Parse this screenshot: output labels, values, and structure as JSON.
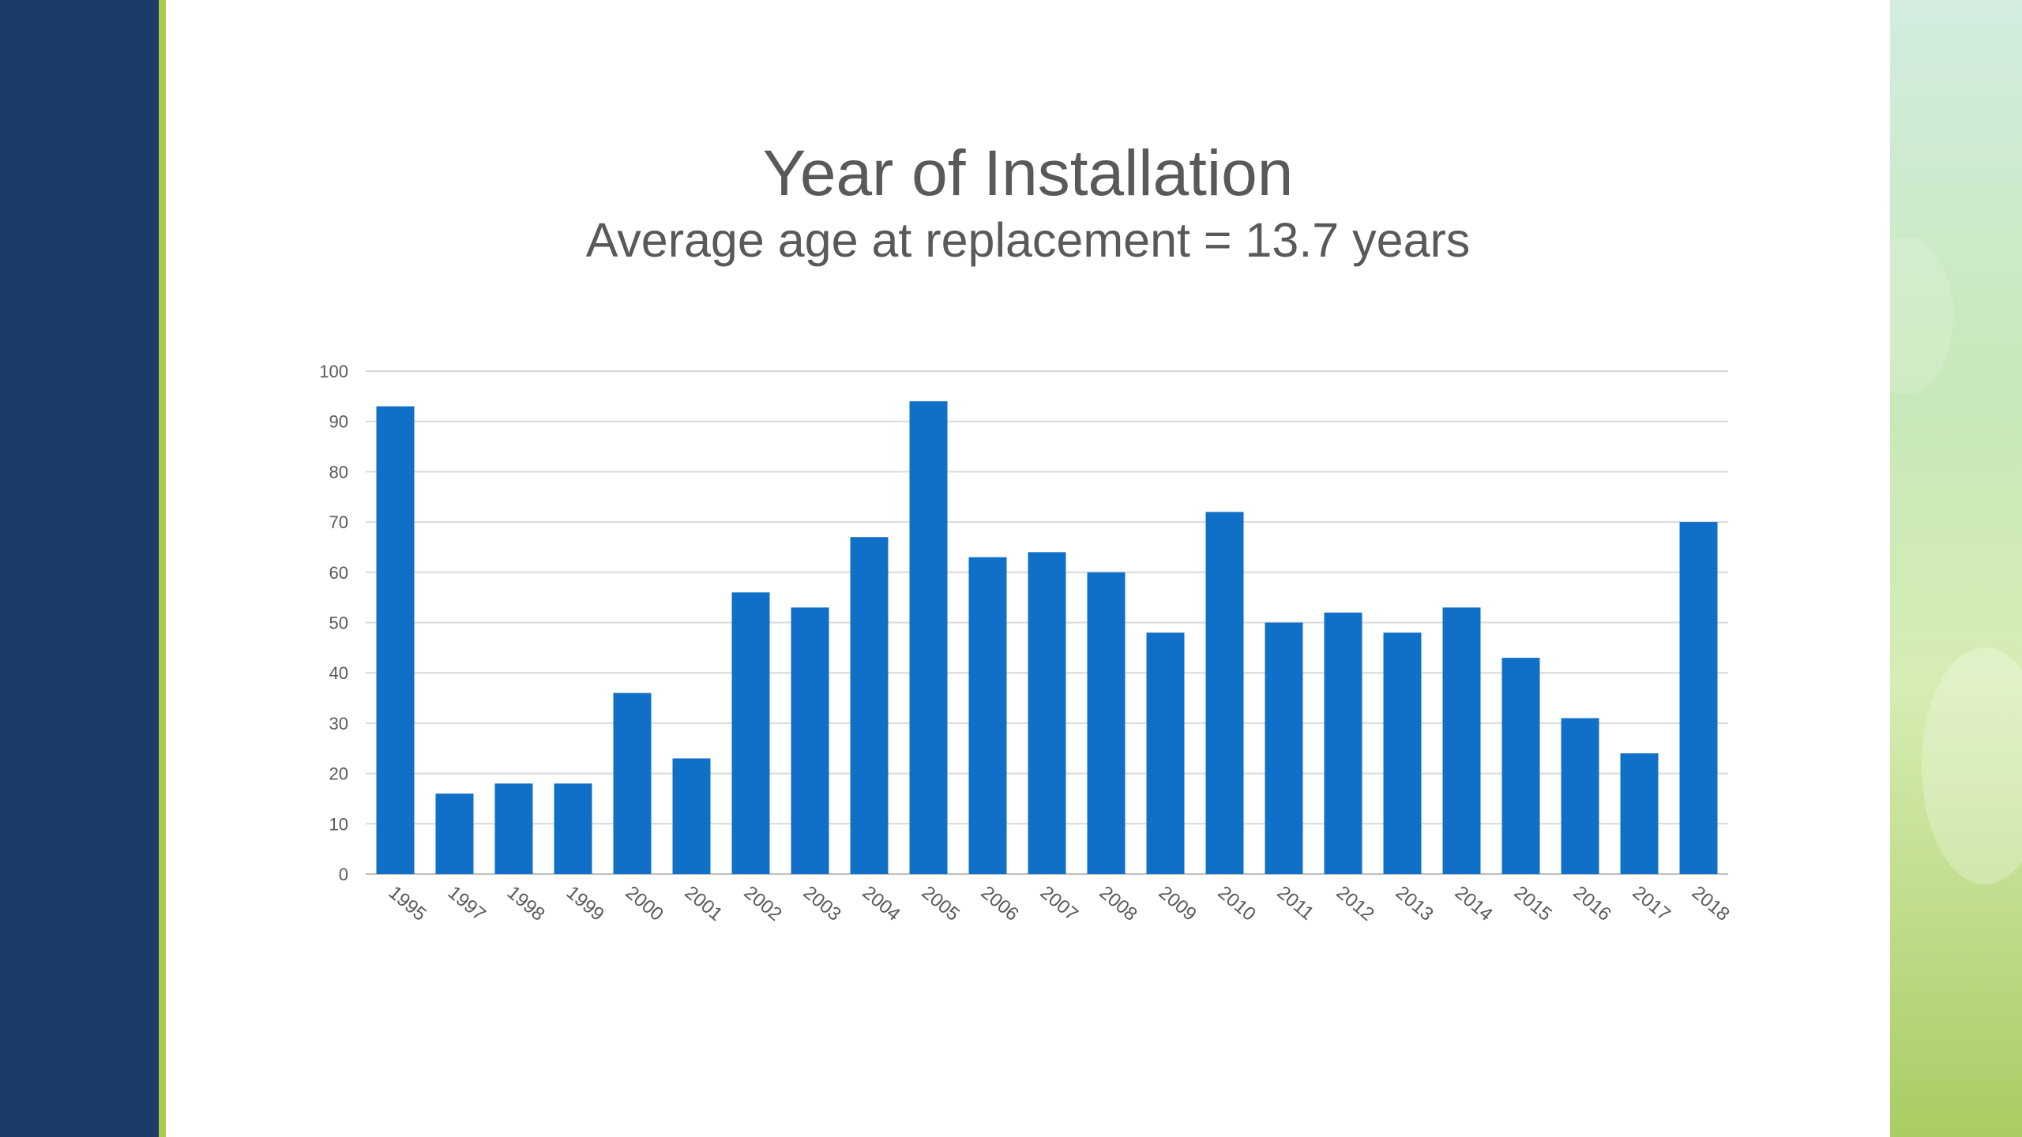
{
  "chart_data": {
    "type": "bar",
    "title": "Year of Installation",
    "subtitle": "Average age at replacement = 13.7 years",
    "xlabel": "",
    "ylabel": "",
    "categories": [
      "1995",
      "1997",
      "1998",
      "1999",
      "2000",
      "2001",
      "2002",
      "2003",
      "2004",
      "2005",
      "2006",
      "2007",
      "2008",
      "2009",
      "2010",
      "2011",
      "2012",
      "2013",
      "2014",
      "2015",
      "2016",
      "2017",
      "2018"
    ],
    "values": [
      93,
      16,
      18,
      18,
      36,
      23,
      56,
      53,
      67,
      94,
      63,
      64,
      60,
      48,
      72,
      50,
      52,
      48,
      53,
      43,
      31,
      24,
      70
    ],
    "ylim": [
      0,
      100
    ],
    "yticks": [
      0,
      10,
      20,
      30,
      40,
      50,
      60,
      70,
      80,
      90,
      100
    ],
    "grid": true,
    "bar_color": "#1070c8"
  },
  "colors": {
    "left_panel": "#1b3c66",
    "accent": "#a8cc4a",
    "text": "#595959"
  }
}
